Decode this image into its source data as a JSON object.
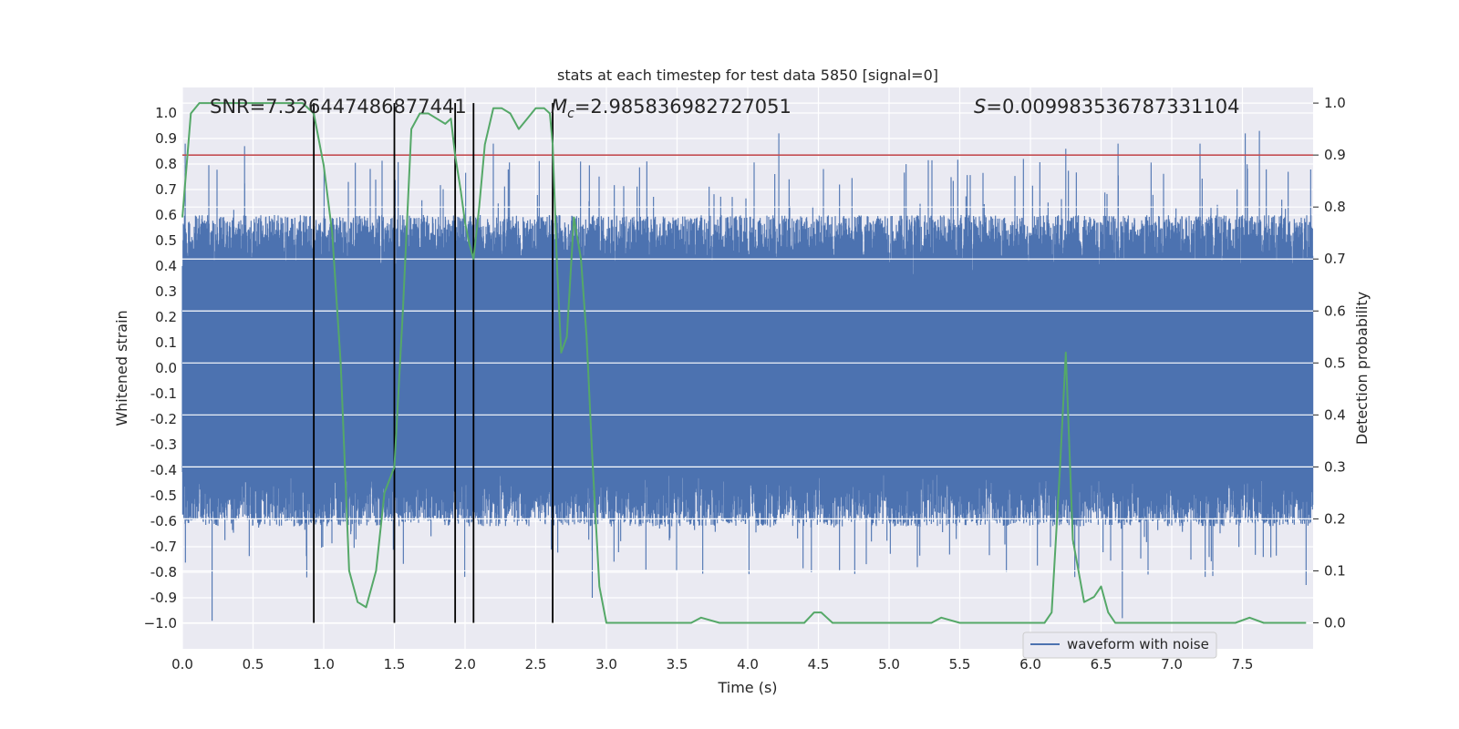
{
  "chart_data": {
    "type": "line",
    "title": "stats at each timestep for test data 5850 [signal=0]",
    "xlabel": "Time (s)",
    "ylabel": "Whitened strain",
    "ylabel_right": "Detection probability",
    "xlim": [
      0,
      8.0
    ],
    "ylim": [
      -1.1,
      1.1
    ],
    "ylim_right": [
      -0.05,
      1.03
    ],
    "x_ticks": [
      "0.0",
      "0.5",
      "1.0",
      "1.5",
      "2.0",
      "2.5",
      "3.0",
      "3.5",
      "4.0",
      "4.5",
      "5.0",
      "5.5",
      "6.0",
      "6.5",
      "7.0",
      "7.5"
    ],
    "x_tick_values": [
      0,
      0.5,
      1.0,
      1.5,
      2.0,
      2.5,
      3.0,
      3.5,
      4.0,
      4.5,
      5.0,
      5.5,
      6.0,
      6.5,
      7.0,
      7.5
    ],
    "y_ticks": [
      "1.0",
      "0.9",
      "0.8",
      "0.7",
      "0.6",
      "0.5",
      "0.4",
      "0.3",
      "0.2",
      "0.1",
      "0.0",
      "-0.1",
      "-0.2",
      "-0.3",
      "-0.4",
      "-0.5",
      "-0.6",
      "-0.7",
      "-0.8",
      "-0.9",
      "−1.0"
    ],
    "y_tick_values": [
      1.0,
      0.9,
      0.8,
      0.7,
      0.6,
      0.5,
      0.4,
      0.3,
      0.2,
      0.1,
      0.0,
      -0.1,
      -0.2,
      -0.3,
      -0.4,
      -0.5,
      -0.6,
      -0.7,
      -0.8,
      -0.9,
      -1.0
    ],
    "y_right_ticks": [
      "1.0",
      "0.9",
      "0.8",
      "0.7",
      "0.6",
      "0.5",
      "0.4",
      "0.3",
      "0.2",
      "0.1",
      "0.0"
    ],
    "y_right_tick_values": [
      1.0,
      0.9,
      0.8,
      0.7,
      0.6,
      0.5,
      0.4,
      0.3,
      0.2,
      0.1,
      0.0
    ],
    "annotations": {
      "snr": "SNR=7.326447486877441",
      "mc_symbol": "M",
      "mc_sub": "c",
      "mc_value": "=2.985836982727051",
      "s_symbol": "S",
      "s_value": "=0.009983536787331104"
    },
    "threshold": 0.9,
    "vlines": [
      0.93,
      1.5,
      1.93,
      2.06,
      2.62
    ],
    "legend": {
      "label": "waveform with noise",
      "placement": "lower-center-right"
    },
    "series": [
      {
        "name": "waveform with noise",
        "kind": "noise",
        "color": "#4c72b0",
        "envelope": [
          0.6,
          -0.62
        ],
        "peaks_max": [
          [
            0.02,
            0.88
          ],
          [
            0.44,
            0.87
          ],
          [
            2.2,
            0.88
          ],
          [
            4.22,
            0.92
          ],
          [
            6.62,
            0.88
          ],
          [
            7.2,
            0.88
          ],
          [
            7.52,
            0.92
          ],
          [
            7.62,
            0.93
          ],
          [
            6.25,
            0.86
          ],
          [
            5.95,
            0.82
          ]
        ],
        "peaks_min": [
          [
            0.21,
            -0.99
          ],
          [
            0.88,
            -0.82
          ],
          [
            2.9,
            -0.9
          ],
          [
            6.65,
            -0.98
          ],
          [
            7.95,
            -0.85
          ],
          [
            4.45,
            -0.8
          ],
          [
            5.2,
            -0.78
          ]
        ]
      },
      {
        "name": "detection probability",
        "kind": "line",
        "color": "#55a868",
        "x": [
          0.0,
          0.06,
          0.12,
          0.2,
          0.3,
          0.5,
          0.7,
          0.85,
          0.93,
          1.0,
          1.06,
          1.12,
          1.18,
          1.24,
          1.3,
          1.37,
          1.43,
          1.5,
          1.56,
          1.62,
          1.68,
          1.74,
          1.8,
          1.86,
          1.9,
          1.93,
          1.97,
          2.0,
          2.03,
          2.06,
          2.1,
          2.14,
          2.2,
          2.26,
          2.32,
          2.38,
          2.44,
          2.5,
          2.56,
          2.6,
          2.62,
          2.65,
          2.68,
          2.72,
          2.77,
          2.82,
          2.86,
          2.9,
          2.95,
          3.0,
          3.1,
          3.3,
          3.5,
          3.6,
          3.67,
          3.8,
          4.0,
          4.2,
          4.4,
          4.47,
          4.52,
          4.56,
          4.6,
          4.7,
          4.8,
          5.0,
          5.2,
          5.3,
          5.37,
          5.5,
          5.7,
          5.9,
          6.0,
          6.1,
          6.15,
          6.21,
          6.25,
          6.3,
          6.38,
          6.45,
          6.5,
          6.55,
          6.6,
          6.7,
          6.9,
          7.1,
          7.3,
          7.45,
          7.55,
          7.65,
          7.8,
          7.95
        ],
        "y": [
          0.78,
          0.98,
          1.0,
          1.0,
          1.0,
          1.0,
          1.0,
          1.0,
          0.98,
          0.88,
          0.75,
          0.5,
          0.1,
          0.04,
          0.03,
          0.1,
          0.25,
          0.3,
          0.6,
          0.95,
          0.98,
          0.98,
          0.97,
          0.96,
          0.97,
          0.9,
          0.83,
          0.77,
          0.73,
          0.7,
          0.8,
          0.92,
          0.99,
          0.99,
          0.98,
          0.95,
          0.97,
          0.99,
          0.99,
          0.98,
          0.92,
          0.69,
          0.52,
          0.55,
          0.78,
          0.7,
          0.55,
          0.32,
          0.07,
          0.0,
          0.0,
          0.0,
          0.0,
          0.0,
          0.01,
          0.0,
          0.0,
          0.0,
          0.0,
          0.02,
          0.02,
          0.01,
          0.0,
          0.0,
          0.0,
          0.0,
          0.0,
          0.0,
          0.01,
          0.0,
          0.0,
          0.0,
          0.0,
          0.0,
          0.02,
          0.3,
          0.52,
          0.16,
          0.04,
          0.05,
          0.07,
          0.02,
          0.0,
          0.0,
          0.0,
          0.0,
          0.0,
          0.0,
          0.01,
          0.0,
          0.0,
          0.0
        ]
      }
    ]
  }
}
